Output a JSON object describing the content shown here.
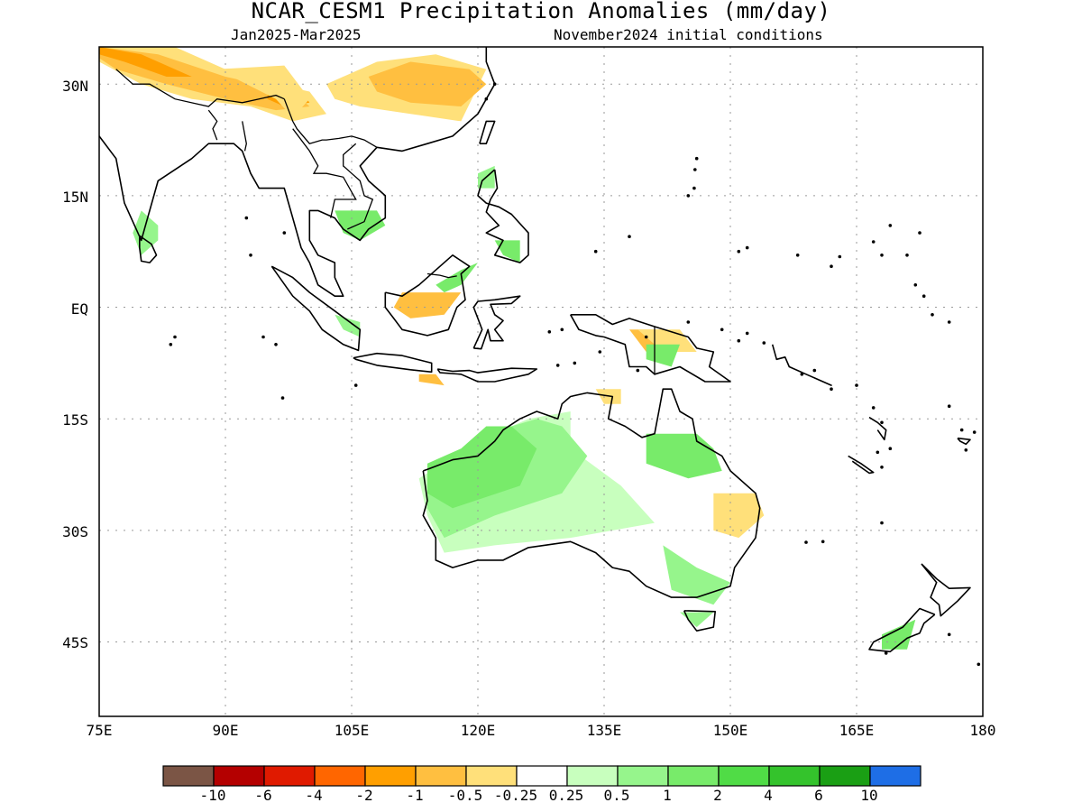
{
  "title": "NCAR_CESM1 Precipitation Anomalies (mm/day)",
  "subtitle_left": "Jan2025-Mar2025",
  "subtitle_right": "November2024 initial conditions",
  "map": {
    "lon_range": [
      75,
      180
    ],
    "lat_range": [
      -55,
      35
    ],
    "lat_labels": [
      "30N",
      "15N",
      "EQ",
      "15S",
      "30S",
      "45S"
    ],
    "lon_labels": [
      "75E",
      "90E",
      "105E",
      "120E",
      "135E",
      "150E",
      "165E",
      "180"
    ],
    "gridlines": "dotted"
  },
  "colorbar": {
    "colors": [
      "#7b5545",
      "#b40000",
      "#e01a00",
      "#ff6600",
      "#ff9f00",
      "#ffbf40",
      "#ffe07a",
      "#ffffff",
      "#c8ffbe",
      "#96f58c",
      "#78eb6a",
      "#50dc46",
      "#34c32c",
      "#1a9f14",
      "#1e6ee6"
    ],
    "labels": [
      "-10",
      "-6",
      "-4",
      "-2",
      "-1",
      "-0.5",
      "-0.25",
      "0.25",
      "0.5",
      "1",
      "2",
      "4",
      "6",
      "10"
    ]
  }
}
